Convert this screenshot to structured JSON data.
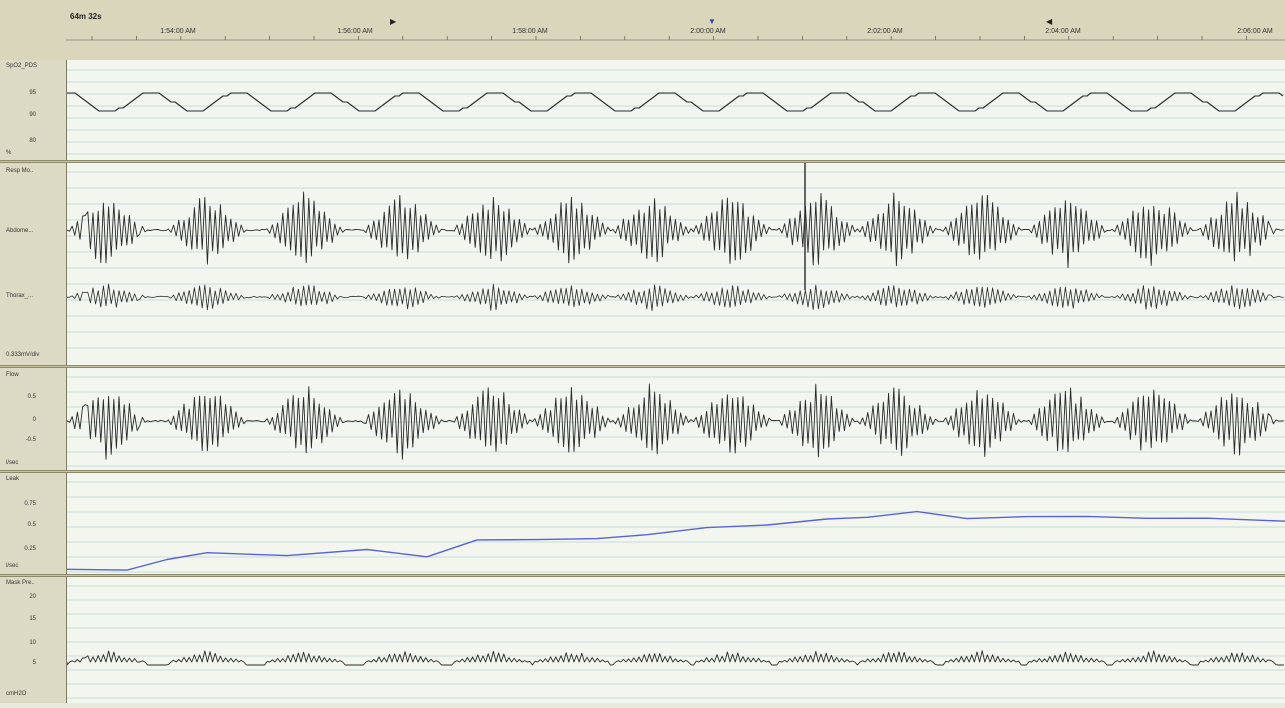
{
  "header": {
    "span": "64m 32s",
    "times": [
      "1:54:00 AM",
      "1:56:00 AM",
      "1:58:00 AM",
      "2:00:00 AM",
      "2:02:00 AM",
      "2:04:00 AM",
      "2:06:00 AM"
    ]
  },
  "channels": {
    "spo2": {
      "name": "SpO2_PDS",
      "ticks": [
        "95",
        "90",
        "80"
      ],
      "unit": "%"
    },
    "resp": {
      "name": "Resp Mo..",
      "ab": "Abdome...",
      "th": "Thorax_...",
      "scale": "0.333mV/div"
    },
    "flow": {
      "name": "Flow",
      "ticks": [
        "0.5",
        "0",
        "-0.5"
      ],
      "unit": "l/sec"
    },
    "leak": {
      "name": "Leak",
      "ticks": [
        "0.75",
        "0.5",
        "0.25"
      ],
      "unit": "l/sec"
    },
    "mask": {
      "name": "Mask Pre..",
      "ticks": [
        "20",
        "15",
        "10",
        "5"
      ],
      "unit": "cmH2O"
    }
  },
  "colors": {
    "trace": "#2a2a2a",
    "leak_trace": "#5a63d6",
    "grid": "#b9d3d6",
    "marker_blue": "#3344aa"
  }
}
